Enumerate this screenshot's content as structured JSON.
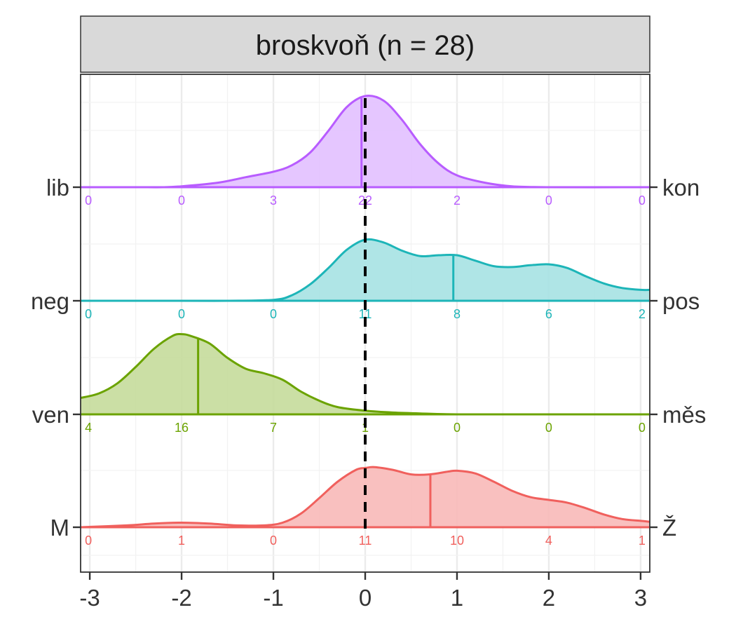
{
  "chart_data": {
    "type": "ridgeline",
    "title": "broskvoň (n = 28)",
    "xlabel": "",
    "ylabel": "",
    "xlim": [
      -3.1,
      3.1
    ],
    "x_ticks": [
      "-3",
      "-2",
      "-1",
      "0",
      "1",
      "2",
      "3"
    ],
    "x_tick_values": [
      -3,
      -2,
      -1,
      0,
      1,
      2,
      3
    ],
    "reference_line": 0,
    "grid": true,
    "legend": "none",
    "count_positions": [
      -3,
      -2,
      -1,
      0,
      1,
      2,
      3
    ],
    "series": [
      {
        "left_label": "lib",
        "right_label": "kon",
        "color": "#B85CFF",
        "fill": "#E2C0FF",
        "mean": -0.04,
        "counts": [
          "0",
          "0",
          "3",
          "22",
          "2",
          "0",
          "0"
        ],
        "density": [
          [
            -3.1,
            0.0
          ],
          [
            -3.0,
            0.0
          ],
          [
            -2.5,
            0.0
          ],
          [
            -2.2,
            0.0
          ],
          [
            -2.0,
            0.01
          ],
          [
            -1.6,
            0.05
          ],
          [
            -1.3,
            0.11
          ],
          [
            -1.0,
            0.17
          ],
          [
            -0.8,
            0.24
          ],
          [
            -0.6,
            0.38
          ],
          [
            -0.4,
            0.62
          ],
          [
            -0.2,
            0.88
          ],
          [
            0.0,
            1.0
          ],
          [
            0.2,
            0.95
          ],
          [
            0.4,
            0.74
          ],
          [
            0.6,
            0.47
          ],
          [
            0.8,
            0.26
          ],
          [
            1.0,
            0.13
          ],
          [
            1.3,
            0.05
          ],
          [
            1.6,
            0.01
          ],
          [
            2.0,
            0.0
          ],
          [
            3.0,
            0.0
          ],
          [
            3.1,
            0.0
          ]
        ]
      },
      {
        "left_label": "neg",
        "right_label": "pos",
        "color": "#1DB5B8",
        "fill": "#A6E2E3",
        "mean": 0.96,
        "counts": [
          "0",
          "0",
          "0",
          "11",
          "8",
          "6",
          "2"
        ],
        "density": [
          [
            -3.1,
            0.0
          ],
          [
            -2.0,
            0.0
          ],
          [
            -1.5,
            0.0
          ],
          [
            -1.0,
            0.01
          ],
          [
            -0.8,
            0.06
          ],
          [
            -0.6,
            0.18
          ],
          [
            -0.4,
            0.36
          ],
          [
            -0.2,
            0.56
          ],
          [
            0.0,
            0.67
          ],
          [
            0.2,
            0.64
          ],
          [
            0.4,
            0.55
          ],
          [
            0.6,
            0.49
          ],
          [
            0.8,
            0.5
          ],
          [
            1.0,
            0.5
          ],
          [
            1.2,
            0.44
          ],
          [
            1.4,
            0.38
          ],
          [
            1.6,
            0.37
          ],
          [
            1.8,
            0.39
          ],
          [
            2.0,
            0.4
          ],
          [
            2.2,
            0.36
          ],
          [
            2.4,
            0.27
          ],
          [
            2.6,
            0.19
          ],
          [
            2.8,
            0.14
          ],
          [
            3.0,
            0.12
          ],
          [
            3.1,
            0.12
          ]
        ]
      },
      {
        "left_label": "ven",
        "right_label": "měs",
        "color": "#6BA300",
        "fill": "#C5DB9B",
        "mean": -1.82,
        "counts": [
          "4",
          "16",
          "7",
          "1",
          "0",
          "0",
          "0"
        ],
        "density": [
          [
            -3.1,
            0.18
          ],
          [
            -2.9,
            0.23
          ],
          [
            -2.7,
            0.34
          ],
          [
            -2.5,
            0.52
          ],
          [
            -2.3,
            0.72
          ],
          [
            -2.1,
            0.86
          ],
          [
            -2.0,
            0.88
          ],
          [
            -1.9,
            0.86
          ],
          [
            -1.7,
            0.78
          ],
          [
            -1.5,
            0.62
          ],
          [
            -1.3,
            0.5
          ],
          [
            -1.1,
            0.45
          ],
          [
            -0.9,
            0.38
          ],
          [
            -0.7,
            0.25
          ],
          [
            -0.5,
            0.15
          ],
          [
            -0.3,
            0.08
          ],
          [
            0.0,
            0.04
          ],
          [
            0.3,
            0.02
          ],
          [
            0.6,
            0.01
          ],
          [
            1.0,
            0.0
          ],
          [
            2.0,
            0.0
          ],
          [
            3.1,
            0.0
          ]
        ]
      },
      {
        "left_label": "M",
        "right_label": "Ž",
        "color": "#F0605D",
        "fill": "#F8B9B8",
        "mean": 0.71,
        "counts": [
          "0",
          "1",
          "0",
          "11",
          "10",
          "4",
          "1"
        ],
        "density": [
          [
            -3.1,
            0.0
          ],
          [
            -2.6,
            0.02
          ],
          [
            -2.3,
            0.04
          ],
          [
            -2.0,
            0.05
          ],
          [
            -1.7,
            0.04
          ],
          [
            -1.4,
            0.02
          ],
          [
            -1.1,
            0.02
          ],
          [
            -0.9,
            0.05
          ],
          [
            -0.7,
            0.15
          ],
          [
            -0.5,
            0.32
          ],
          [
            -0.3,
            0.5
          ],
          [
            -0.1,
            0.63
          ],
          [
            0.0,
            0.65
          ],
          [
            0.1,
            0.66
          ],
          [
            0.3,
            0.63
          ],
          [
            0.5,
            0.58
          ],
          [
            0.7,
            0.58
          ],
          [
            0.9,
            0.61
          ],
          [
            1.0,
            0.62
          ],
          [
            1.2,
            0.59
          ],
          [
            1.4,
            0.5
          ],
          [
            1.6,
            0.4
          ],
          [
            1.8,
            0.33
          ],
          [
            2.0,
            0.3
          ],
          [
            2.2,
            0.27
          ],
          [
            2.4,
            0.21
          ],
          [
            2.6,
            0.14
          ],
          [
            2.8,
            0.09
          ],
          [
            3.0,
            0.07
          ],
          [
            3.1,
            0.06
          ]
        ]
      }
    ]
  }
}
